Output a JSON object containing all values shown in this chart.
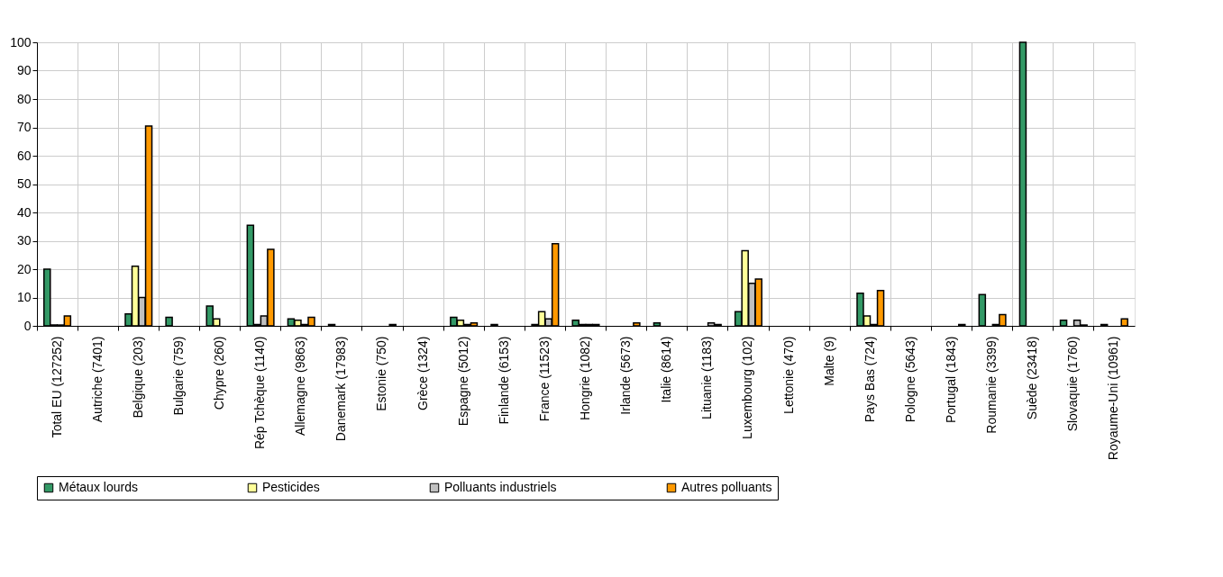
{
  "chart_data": {
    "type": "bar",
    "categories": [
      "Total EU (127252)",
      "Autriche (7401)",
      "Belgique (203)",
      "Bulgarie (759)",
      "Chypre (260)",
      "Rép Tchèque (1140)",
      "Allemagne (9863)",
      "Danemark (17983)",
      "Estonie (750)",
      "Grèce (1324)",
      "Espagne (5012)",
      "Finlande (6153)",
      "France (11523)",
      "Hongrie (1082)",
      "Irlande (5673)",
      "Italie (8614)",
      "Lituanie (1183)",
      "Luxembourg (102)",
      "Lettonie (470)",
      "Malte (9)",
      "Pays Bas (724)",
      "Pologne (5643)",
      "Portugal (1843)",
      "Roumanie (3399)",
      "Suède (23418)",
      "Slovaquie (1760)",
      "Royaume-Uni (10961)"
    ],
    "series": [
      {
        "name": "Métaux lourds",
        "color": "#339966",
        "values": [
          20,
          null,
          4.2,
          3,
          7,
          35.5,
          2.5,
          0.5,
          null,
          null,
          3,
          0.5,
          0.5,
          2,
          null,
          1,
          null,
          5,
          null,
          null,
          11.5,
          null,
          null,
          11,
          100,
          2,
          0.5
        ]
      },
      {
        "name": "Pesticides",
        "color": "#ffff99",
        "values": [
          0.3,
          null,
          21,
          null,
          2.5,
          0.5,
          2,
          null,
          null,
          null,
          2,
          null,
          5,
          0.5,
          null,
          null,
          null,
          26.5,
          null,
          null,
          3.5,
          null,
          null,
          null,
          null,
          null,
          null
        ]
      },
      {
        "name": "Polluants industriels",
        "color": "#c0c0c0",
        "values": [
          0.3,
          null,
          10,
          null,
          null,
          3.5,
          0.5,
          null,
          null,
          null,
          0.5,
          null,
          2.5,
          0.5,
          null,
          null,
          1,
          15,
          null,
          null,
          0.5,
          null,
          null,
          0.5,
          null,
          2,
          null
        ]
      },
      {
        "name": "Autres polluants",
        "color": "#ff9900",
        "values": [
          3.5,
          null,
          70.5,
          null,
          null,
          27,
          3,
          null,
          0.5,
          null,
          1,
          null,
          29,
          0.5,
          1,
          null,
          0.5,
          16.5,
          null,
          null,
          12.5,
          null,
          0.5,
          4,
          null,
          0.3,
          2.5
        ]
      }
    ],
    "ylim": [
      0,
      100
    ],
    "yticks": [
      0,
      10,
      20,
      30,
      40,
      50,
      60,
      70,
      80,
      90,
      100
    ],
    "grid": true,
    "legend": "bottom"
  }
}
